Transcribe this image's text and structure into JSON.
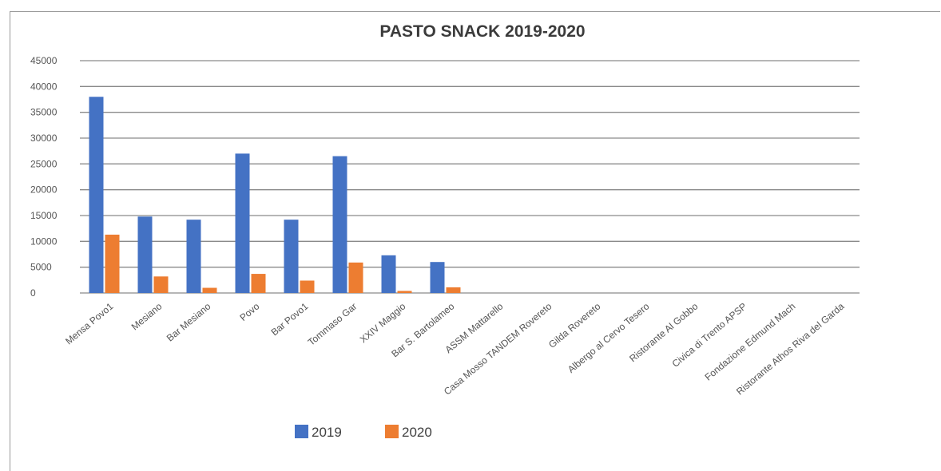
{
  "chart_data": {
    "type": "bar",
    "title": "PASTO SNACK 2019-2020",
    "xlabel": "",
    "ylabel": "",
    "ylim": [
      0,
      45000
    ],
    "yticks": [
      0,
      5000,
      10000,
      15000,
      20000,
      25000,
      30000,
      35000,
      40000,
      45000
    ],
    "grid": true,
    "legend_position": "bottom",
    "categories": [
      "Mensa Povo1",
      "Mesiano",
      "Bar Mesiano",
      "Povo",
      "Bar Povo1",
      "Tommaso Gar",
      "XXIV Maggio",
      "Bar S. Bartolameo",
      "ASSM Mattarello",
      "Casa Mosso TANDEM Rovereto",
      "Gilda Rovereto",
      "Albergo al Cervo Tesero",
      "Ristorante Al Gobbo",
      "Civica di Trento APSP",
      "Fondazione Edmund Mach",
      "Ristorante Athos Riva del Garda"
    ],
    "series": [
      {
        "name": "2019",
        "color": "#4472C4",
        "values": [
          38000,
          14800,
          14200,
          27000,
          14200,
          26500,
          7300,
          6000,
          0,
          0,
          0,
          0,
          0,
          0,
          0,
          0
        ]
      },
      {
        "name": "2020",
        "color": "#ED7D31",
        "values": [
          11300,
          3200,
          1000,
          3700,
          2400,
          5900,
          400,
          1100,
          0,
          0,
          0,
          0,
          0,
          0,
          0,
          0
        ]
      }
    ]
  }
}
